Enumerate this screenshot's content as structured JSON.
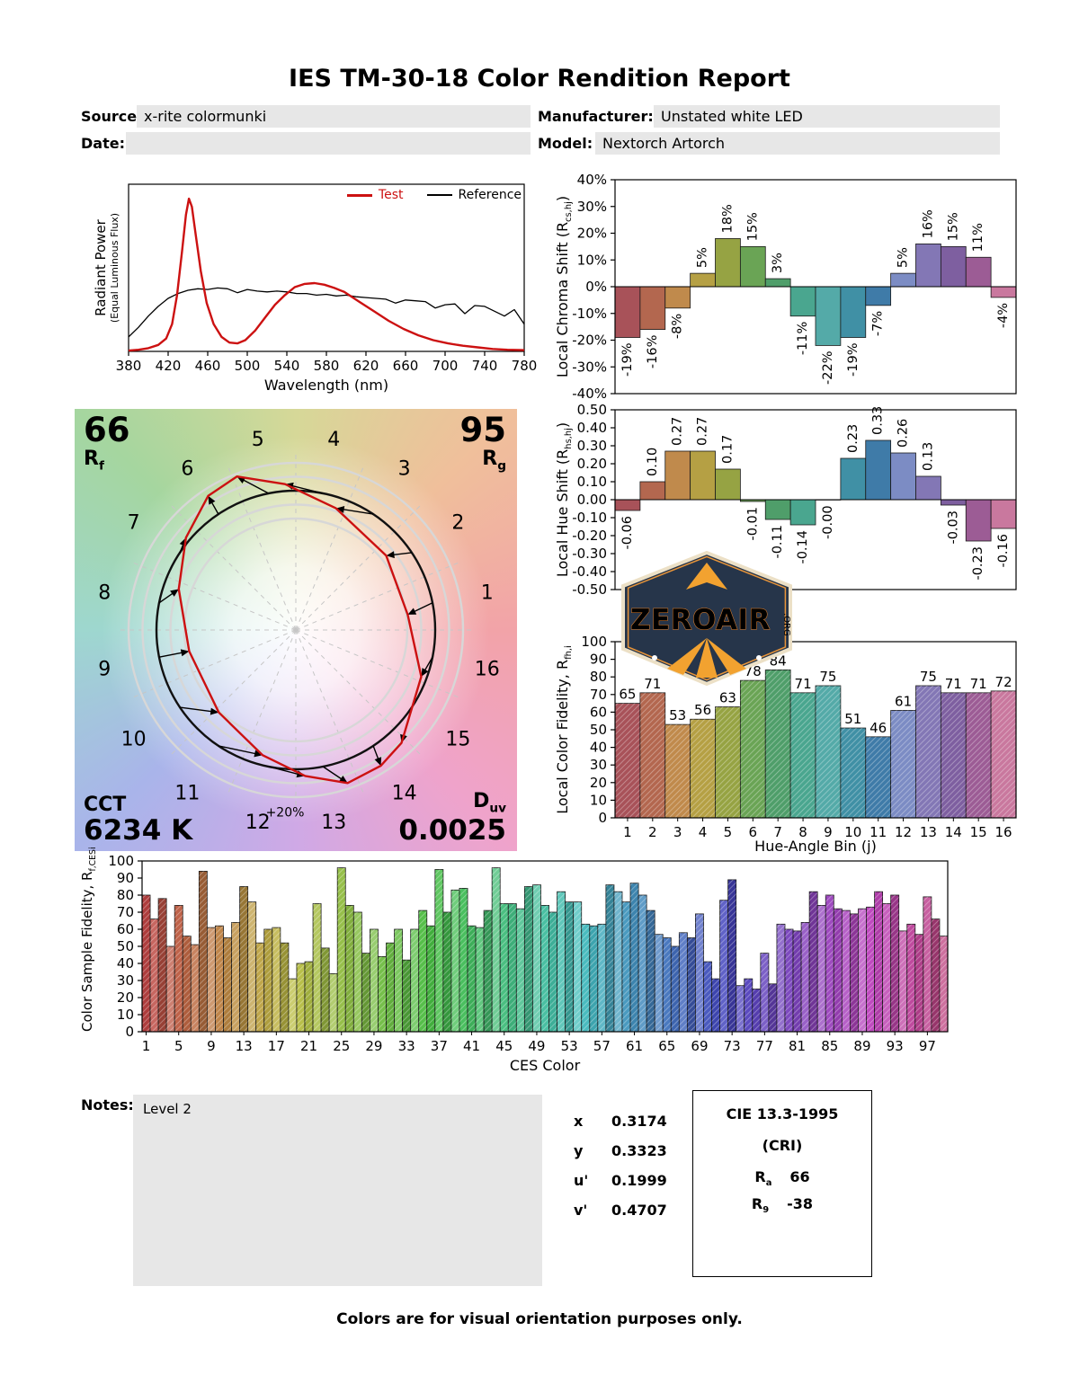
{
  "title": "IES TM-30-18 Color Rendition Report",
  "header": {
    "source_label": "Source:",
    "source_value": "x-rite colormunki",
    "manufacturer_label": "Manufacturer:",
    "manufacturer_value": "Unstated white LED",
    "date_label": "Date:",
    "date_value": "",
    "model_label": "Model:",
    "model_value": "Nextorch Artorch"
  },
  "spd_legend": {
    "test": "Test",
    "reference": "Reference"
  },
  "colors": {
    "test_line": "#cc1111",
    "reference_line": "#000000",
    "field_bg": "#e7e7e7",
    "bin_palette": [
      "#a85259",
      "#b3674f",
      "#c08a4c",
      "#b5a044",
      "#96a343",
      "#6aa455",
      "#4f9e6a",
      "#4aa68f",
      "#54aaa8",
      "#4090a5",
      "#3f7ba8",
      "#7c8cc4",
      "#8377b5",
      "#7e5fa0",
      "#9c5c95",
      "#c9789e"
    ]
  },
  "cvg": {
    "rf_value": "66",
    "rf_sym": "R",
    "rf_sub": "f",
    "rg_value": "95",
    "rg_sym": "R",
    "rg_sub": "g",
    "cct_label": "CCT",
    "cct_value": "6234 K",
    "duv_sym": "D",
    "duv_sub": "uv",
    "duv_value": "0.0025",
    "ring_label": "+20%",
    "bin_labels": [
      "1",
      "2",
      "3",
      "4",
      "5",
      "6",
      "7",
      "8",
      "9",
      "10",
      "11",
      "12",
      "13",
      "14",
      "15",
      "16"
    ]
  },
  "chart_data": [
    {
      "id": "spd",
      "type": "line",
      "xlabel": "Wavelength (nm)",
      "ylabel_line1": "Radiant Power",
      "ylabel_line2": "(Equal Luminous Flux)",
      "xlim": [
        380,
        780
      ],
      "ylim": [
        0,
        1.04
      ],
      "xticks": [
        380,
        420,
        460,
        500,
        540,
        580,
        620,
        660,
        700,
        740,
        780
      ],
      "legend_position": "top-right",
      "series": [
        {
          "name": "Test",
          "color": "#cc1111",
          "x": [
            380,
            390,
            400,
            410,
            418,
            424,
            429,
            434,
            438,
            441,
            444,
            448,
            453,
            459,
            466,
            474,
            482,
            490,
            498,
            508,
            518,
            528,
            538,
            548,
            558,
            568,
            578,
            588,
            598,
            613,
            628,
            643,
            658,
            673,
            688,
            703,
            718,
            733,
            748,
            763,
            780
          ],
          "y": [
            0.005,
            0.01,
            0.02,
            0.04,
            0.08,
            0.17,
            0.35,
            0.62,
            0.85,
            0.95,
            0.9,
            0.72,
            0.5,
            0.3,
            0.17,
            0.09,
            0.055,
            0.05,
            0.07,
            0.13,
            0.21,
            0.29,
            0.35,
            0.4,
            0.42,
            0.425,
            0.415,
            0.395,
            0.37,
            0.31,
            0.25,
            0.19,
            0.14,
            0.1,
            0.07,
            0.05,
            0.035,
            0.025,
            0.015,
            0.01,
            0.008
          ]
        },
        {
          "name": "Reference",
          "color": "#000000",
          "x": [
            380,
            390,
            400,
            410,
            420,
            430,
            440,
            450,
            460,
            470,
            480,
            490,
            500,
            510,
            520,
            530,
            540,
            550,
            560,
            570,
            580,
            590,
            600,
            610,
            620,
            630,
            640,
            650,
            660,
            670,
            680,
            690,
            700,
            710,
            720,
            730,
            740,
            750,
            760,
            770,
            780
          ],
          "y": [
            0.09,
            0.15,
            0.22,
            0.28,
            0.33,
            0.36,
            0.38,
            0.39,
            0.385,
            0.395,
            0.39,
            0.365,
            0.385,
            0.375,
            0.37,
            0.375,
            0.37,
            0.36,
            0.36,
            0.35,
            0.355,
            0.345,
            0.35,
            0.34,
            0.335,
            0.33,
            0.325,
            0.3,
            0.32,
            0.315,
            0.31,
            0.27,
            0.29,
            0.295,
            0.235,
            0.285,
            0.28,
            0.25,
            0.22,
            0.26,
            0.17
          ]
        }
      ]
    },
    {
      "id": "chroma_shift",
      "type": "bar",
      "ylabel_main": "Local Chroma Shift (R",
      "ylabel_sub": "cs,hj",
      "ylabel_close": ")",
      "ylim": [
        -40,
        40
      ],
      "yticks": [
        [
          40,
          "40%"
        ],
        [
          30,
          "30%"
        ],
        [
          20,
          "20%"
        ],
        [
          10,
          "10%"
        ],
        [
          0,
          "0%"
        ],
        [
          -10,
          "-10%"
        ],
        [
          -20,
          "-20%"
        ],
        [
          -30,
          "-30%"
        ],
        [
          -40,
          "-40%"
        ]
      ],
      "categories": [
        1,
        2,
        3,
        4,
        5,
        6,
        7,
        8,
        9,
        10,
        11,
        12,
        13,
        14,
        15,
        16
      ],
      "values": [
        -19,
        -16,
        -8,
        5,
        18,
        15,
        3,
        -11,
        -22,
        -19,
        -7,
        5,
        16,
        15,
        11,
        -4
      ],
      "labels": [
        "-19%",
        "-16%",
        "-8%",
        "5%",
        "18%",
        "15%",
        "3%",
        "-11%",
        "-22%",
        "-19%",
        "-7%",
        "5%",
        "16%",
        "15%",
        "11%",
        "-4%"
      ]
    },
    {
      "id": "hue_shift",
      "type": "bar",
      "ylabel_main": "Local Hue Shift (R",
      "ylabel_sub": "hs,hj",
      "ylabel_close": ")",
      "ylim": [
        -0.5,
        0.5
      ],
      "yticks": [
        [
          0.5,
          "0.50"
        ],
        [
          0.4,
          "0.40"
        ],
        [
          0.3,
          "0.30"
        ],
        [
          0.2,
          "0.20"
        ],
        [
          0.1,
          "0.10"
        ],
        [
          0,
          "0.00"
        ],
        [
          -0.1,
          "-0.10"
        ],
        [
          -0.2,
          "-0.20"
        ],
        [
          -0.3,
          "-0.30"
        ],
        [
          -0.4,
          "-0.40"
        ],
        [
          -0.5,
          "-0.50"
        ]
      ],
      "categories": [
        1,
        2,
        3,
        4,
        5,
        6,
        7,
        8,
        9,
        10,
        11,
        12,
        13,
        14,
        15,
        16
      ],
      "values": [
        -0.06,
        0.1,
        0.27,
        0.27,
        0.17,
        -0.01,
        -0.11,
        -0.14,
        0.0,
        0.23,
        0.33,
        0.26,
        0.13,
        -0.03,
        -0.23,
        -0.16
      ],
      "labels": [
        "-0.06",
        "0.10",
        "0.27",
        "0.27",
        "0.17",
        "-0.01",
        "-0.11",
        "-0.14",
        "-0.00",
        "0.23",
        "0.33",
        "0.26",
        "0.13",
        "-0.03",
        "-0.23",
        "-0.16"
      ]
    },
    {
      "id": "local_fidelity",
      "type": "bar",
      "ylabel_main": "Local Color Fidelity, R",
      "ylabel_sub": "fh,i",
      "xlabel": "Hue-Angle Bin (j)",
      "ylim": [
        0,
        100
      ],
      "yticks": [
        [
          100,
          "100"
        ],
        [
          90,
          "90"
        ],
        [
          80,
          "80"
        ],
        [
          70,
          "70"
        ],
        [
          60,
          "60"
        ],
        [
          50,
          "50"
        ],
        [
          40,
          "40"
        ],
        [
          30,
          "30"
        ],
        [
          20,
          "20"
        ],
        [
          10,
          "10"
        ],
        [
          0,
          "0"
        ]
      ],
      "xticks": [
        [
          1,
          "1"
        ],
        [
          2,
          "2"
        ],
        [
          3,
          "3"
        ],
        [
          4,
          "4"
        ],
        [
          5,
          "5"
        ],
        [
          6,
          "6"
        ],
        [
          7,
          "7"
        ],
        [
          8,
          "8"
        ],
        [
          9,
          "9"
        ],
        [
          10,
          "10"
        ],
        [
          11,
          "11"
        ],
        [
          12,
          "12"
        ],
        [
          13,
          "13"
        ],
        [
          14,
          "14"
        ],
        [
          15,
          "15"
        ],
        [
          16,
          "16"
        ]
      ],
      "categories": [
        1,
        2,
        3,
        4,
        5,
        6,
        7,
        8,
        9,
        10,
        11,
        12,
        13,
        14,
        15,
        16
      ],
      "values": [
        65,
        71,
        53,
        56,
        63,
        78,
        84,
        71,
        75,
        51,
        46,
        61,
        75,
        71,
        71,
        72
      ],
      "labels": [
        "65",
        "71",
        "53",
        "56",
        "63",
        "78",
        "84",
        "71",
        "75",
        "51",
        "46",
        "61",
        "75",
        "71",
        "71",
        "72"
      ]
    },
    {
      "id": "ces_fidelity",
      "type": "bar",
      "ylabel_main": "Color Sample Fidelity, R",
      "ylabel_sub": "f,CESi",
      "xlabel": "CES Color",
      "ylim": [
        0,
        100
      ],
      "yticks": [
        [
          100,
          "100"
        ],
        [
          90,
          "90"
        ],
        [
          80,
          "80"
        ],
        [
          70,
          "70"
        ],
        [
          60,
          "60"
        ],
        [
          50,
          "50"
        ],
        [
          40,
          "40"
        ],
        [
          30,
          "30"
        ],
        [
          20,
          "20"
        ],
        [
          10,
          "10"
        ],
        [
          0,
          "0"
        ]
      ],
      "xticks": [
        [
          1,
          "1"
        ],
        [
          5,
          "5"
        ],
        [
          9,
          "9"
        ],
        [
          13,
          "13"
        ],
        [
          17,
          "17"
        ],
        [
          21,
          "21"
        ],
        [
          25,
          "25"
        ],
        [
          29,
          "29"
        ],
        [
          33,
          "33"
        ],
        [
          37,
          "37"
        ],
        [
          41,
          "41"
        ],
        [
          45,
          "45"
        ],
        [
          49,
          "49"
        ],
        [
          53,
          "53"
        ],
        [
          57,
          "57"
        ],
        [
          61,
          "61"
        ],
        [
          65,
          "65"
        ],
        [
          69,
          "69"
        ],
        [
          73,
          "73"
        ],
        [
          77,
          "77"
        ],
        [
          81,
          "81"
        ],
        [
          85,
          "85"
        ],
        [
          89,
          "89"
        ],
        [
          93,
          "93"
        ],
        [
          97,
          "97"
        ]
      ],
      "values": [
        80,
        66,
        78,
        50,
        74,
        56,
        51,
        94,
        61,
        62,
        55,
        64,
        85,
        76,
        52,
        60,
        61,
        52,
        31,
        40,
        41,
        75,
        49,
        34,
        96,
        74,
        70,
        46,
        60,
        44,
        52,
        60,
        42,
        60,
        71,
        62,
        95,
        70,
        83,
        84,
        62,
        61,
        71,
        96,
        75,
        75,
        72,
        85,
        86,
        74,
        70,
        82,
        76,
        76,
        63,
        62,
        63,
        86,
        82,
        76,
        87,
        80,
        71,
        57,
        55,
        50,
        58,
        55,
        69,
        41,
        31,
        77,
        89,
        27,
        31,
        25,
        46,
        28,
        63,
        60,
        59,
        64,
        82,
        74,
        80,
        72,
        71,
        69,
        72,
        73,
        82,
        75,
        80,
        59,
        63,
        57,
        79,
        66,
        56
      ]
    }
  ],
  "notes": {
    "label": "Notes:",
    "value": "Level 2"
  },
  "chromaticity": [
    {
      "label": "x",
      "value": "0.3174"
    },
    {
      "label": "y",
      "value": "0.3323"
    },
    {
      "label": "u'",
      "value": "0.1999"
    },
    {
      "label": "v'",
      "value": "0.4707"
    }
  ],
  "cie_box": {
    "title": "CIE 13.3-1995",
    "subtitle": "(CRI)",
    "ra_sym": "R",
    "ra_sub": "a",
    "ra_value": "66",
    "r9_sym": "R",
    "r9_sub": "9",
    "r9_value": "-38"
  },
  "footer": "Colors are for visual orientation purposes only.",
  "logo": {
    "name": "ZEROAIR",
    "org": ".ORG"
  }
}
